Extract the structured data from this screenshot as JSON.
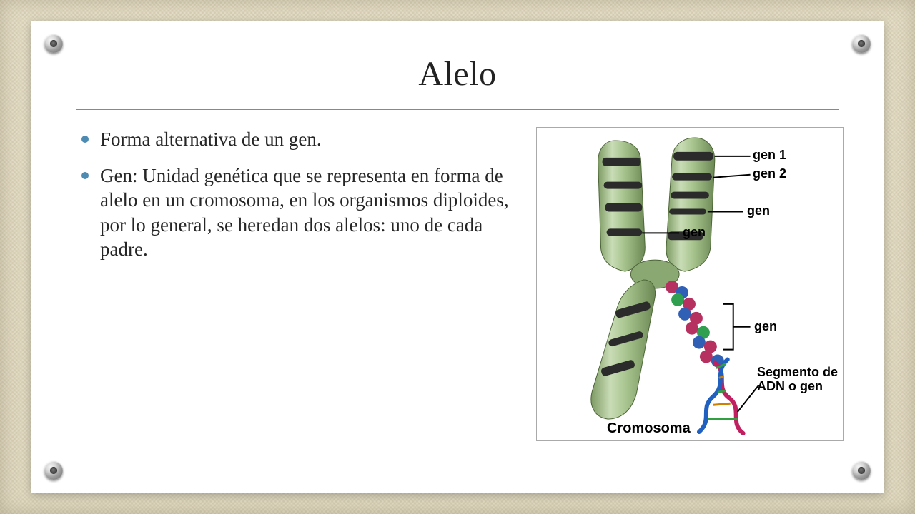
{
  "accent_color": "#4e8bb3",
  "title": "Alelo",
  "bullets": [
    "Forma alternativa de un gen.",
    "Gen: Unidad genética que se representa en forma de alelo en un cromosoma, en los organismos diploides, por lo general, se heredan dos alelos: uno de cada padre."
  ],
  "figure": {
    "background": "#ffffff",
    "chromosome": {
      "fill_light": "#c9dcb6",
      "fill_mid": "#a8c48e",
      "fill_dark": "#7d9a63",
      "band_color": "#2b2b2b",
      "centromere": "#8aa871"
    },
    "dna": {
      "strand1": "#c02060",
      "strand2": "#2060c0",
      "minor": "#30a040"
    },
    "labels": {
      "gen1": "gen 1",
      "gen2": "gen 2",
      "gen_top": "gen",
      "gen_mid": "gen",
      "segment_l1": "Segmento de",
      "segment_l2": "ADN o gen",
      "cromosoma": "Cromosoma"
    },
    "label_fontsize": 18,
    "line_color": "#000000"
  },
  "grommets": true
}
